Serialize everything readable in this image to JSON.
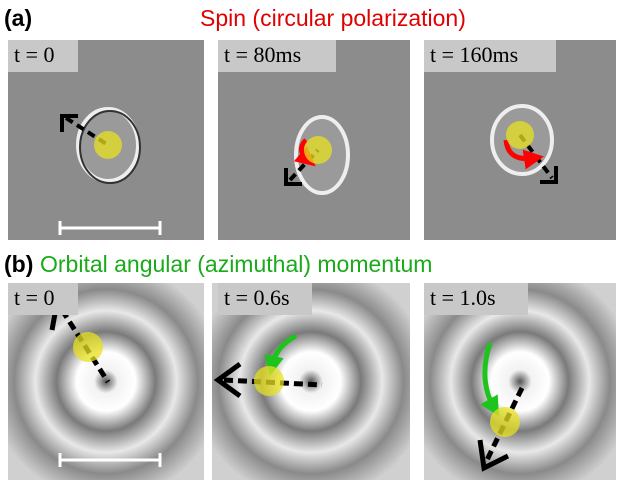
{
  "figure": {
    "a": {
      "label": "(a)",
      "title": "Spin (circular polarization)",
      "panels": [
        "t = 0",
        "t = 80ms",
        "t = 160ms"
      ]
    },
    "b": {
      "label": "(b)",
      "title": "Orbital angular (azimuthal) momentum",
      "panels": [
        "t = 0",
        "t = 0.6s",
        "t = 1.0s"
      ]
    }
  }
}
